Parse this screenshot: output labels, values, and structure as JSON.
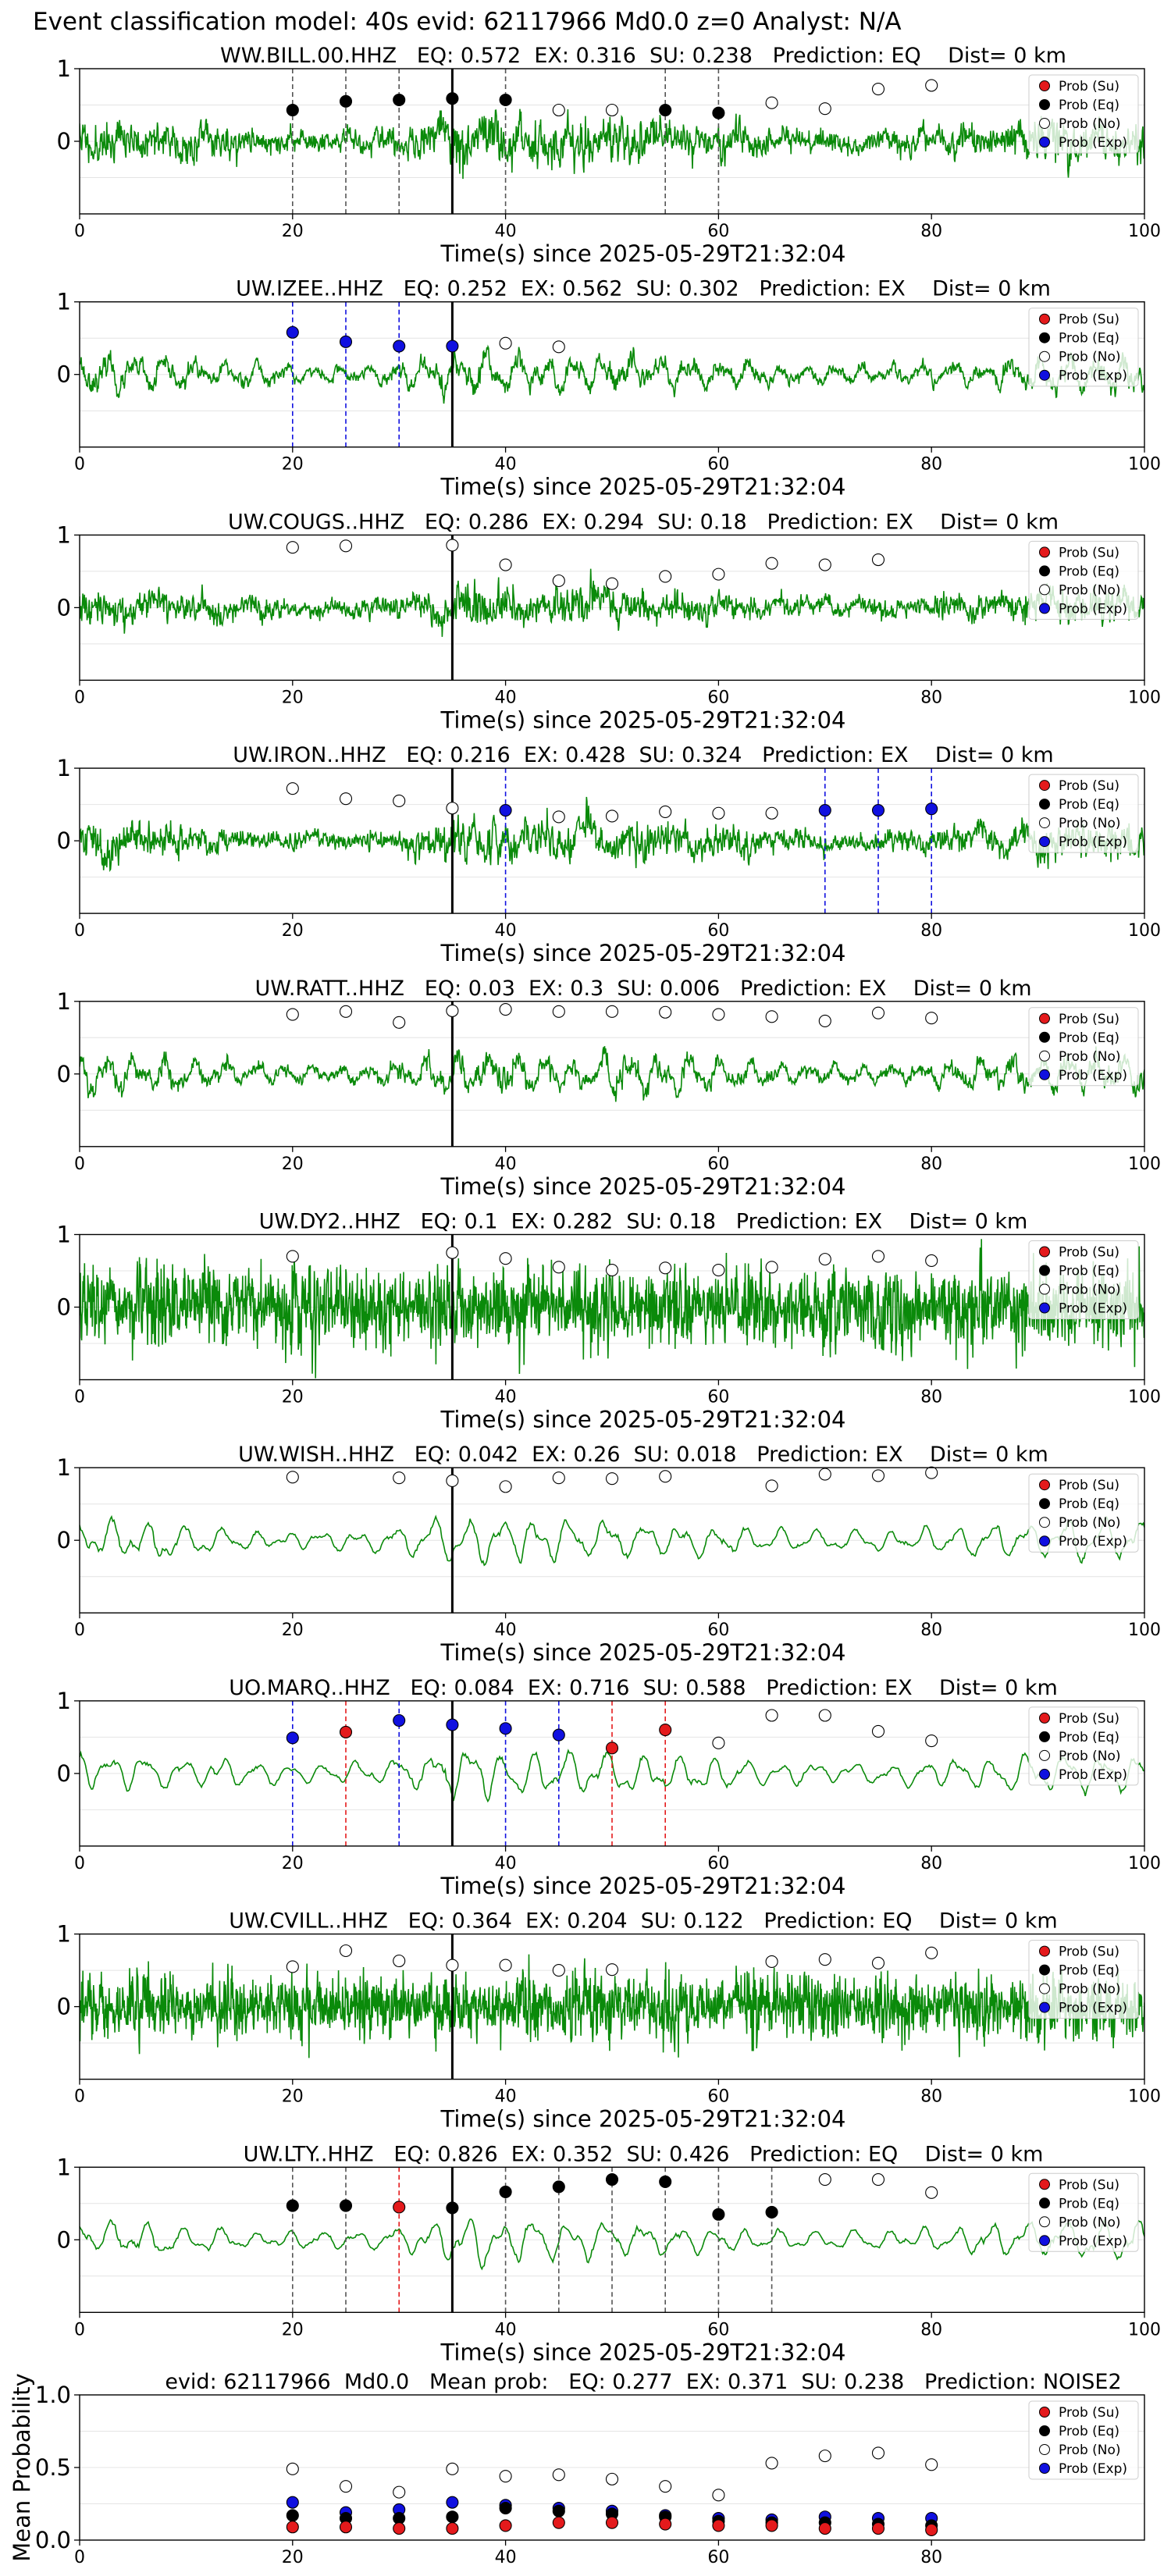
{
  "suptitle": "Event classification model: 40s evid: 62117966 Md0.0 z=0 Analyst: N/A",
  "legend_labels": [
    "Prob (Su)",
    "Prob (Eq)",
    "Prob (No)",
    "Prob (Exp)"
  ],
  "colors": {
    "su": "#e41a1c",
    "eq": "#000000",
    "no": "#ffffff",
    "exp": "#1010e0",
    "waveform": "#0a8a0a",
    "pick": "#000000"
  },
  "chart_data": [
    {
      "type": "scatter",
      "title": "WW.BILL.00.HHZ   EQ: 0.572  EX: 0.316  SU: 0.238   Prediction: EQ    Dist= 0 km",
      "xlabel": "Time(s) since 2025-05-29T21:32:04",
      "xlim": [
        0,
        100
      ],
      "ylim": [
        -1,
        1
      ],
      "xticks": [
        0,
        20,
        40,
        60,
        80,
        100
      ],
      "yticks": [
        0,
        1
      ],
      "pick_time": 35,
      "grid": true,
      "legend": "upper right",
      "waveform": {
        "style": "broadband",
        "amplitude": 0.5,
        "seed": 11
      },
      "series": [
        {
          "name": "Prob (No)",
          "x": [
            45,
            50,
            65,
            70,
            75,
            80
          ],
          "y": [
            0.43,
            0.43,
            0.53,
            0.45,
            0.72,
            0.77
          ]
        },
        {
          "name": "Prob (Eq)",
          "x": [
            20,
            25,
            30,
            35,
            40,
            55,
            60
          ],
          "y": [
            0.43,
            0.55,
            0.57,
            0.59,
            0.57,
            0.43,
            0.39
          ]
        }
      ],
      "markers": [
        {
          "x": 20,
          "class": "eq"
        },
        {
          "x": 25,
          "class": "eq"
        },
        {
          "x": 30,
          "class": "eq"
        },
        {
          "x": 40,
          "class": "eq"
        },
        {
          "x": 55,
          "class": "eq"
        },
        {
          "x": 60,
          "class": "eq"
        }
      ]
    },
    {
      "type": "scatter",
      "title": "UW.IZEE..HHZ   EQ: 0.252  EX: 0.562  SU: 0.302   Prediction: EX    Dist= 0 km",
      "xlabel": "Time(s) since 2025-05-29T21:32:04",
      "xlim": [
        0,
        100
      ],
      "ylim": [
        -1,
        1
      ],
      "xticks": [
        0,
        20,
        40,
        60,
        80,
        100
      ],
      "yticks": [
        0,
        1
      ],
      "pick_time": 35,
      "grid": true,
      "legend": "upper right",
      "waveform": {
        "style": "oscillating",
        "amplitude": 0.5,
        "seed": 23
      },
      "series": [
        {
          "name": "Prob (No)",
          "x": [
            40,
            45
          ],
          "y": [
            0.43,
            0.38
          ]
        },
        {
          "name": "Prob (Exp)",
          "x": [
            20,
            25,
            30,
            35
          ],
          "y": [
            0.58,
            0.45,
            0.39,
            0.39
          ]
        }
      ],
      "markers": [
        {
          "x": 20,
          "class": "exp"
        },
        {
          "x": 25,
          "class": "exp"
        },
        {
          "x": 30,
          "class": "exp"
        }
      ]
    },
    {
      "type": "scatter",
      "title": "UW.COUGS..HHZ   EQ: 0.286  EX: 0.294  SU: 0.18   Prediction: EX    Dist= 0 km",
      "xlabel": "Time(s) since 2025-05-29T21:32:04",
      "xlim": [
        0,
        100
      ],
      "ylim": [
        -1,
        1
      ],
      "xticks": [
        0,
        20,
        40,
        60,
        80,
        100
      ],
      "yticks": [
        0,
        1
      ],
      "pick_time": 35,
      "grid": true,
      "legend": "upper right",
      "waveform": {
        "style": "broadband",
        "amplitude": 0.4,
        "seed": 37
      },
      "series": [
        {
          "name": "Prob (No)",
          "x": [
            20,
            25,
            35,
            40,
            45,
            50,
            55,
            60,
            65,
            70,
            75
          ],
          "y": [
            0.83,
            0.85,
            0.86,
            0.59,
            0.37,
            0.33,
            0.43,
            0.46,
            0.61,
            0.59,
            0.66
          ]
        }
      ],
      "markers": []
    },
    {
      "type": "scatter",
      "title": "UW.IRON..HHZ   EQ: 0.216  EX: 0.428  SU: 0.324   Prediction: EX    Dist= 0 km",
      "xlabel": "Time(s) since 2025-05-29T21:32:04",
      "xlim": [
        0,
        100
      ],
      "ylim": [
        -1,
        1
      ],
      "xticks": [
        0,
        20,
        40,
        60,
        80,
        100
      ],
      "yticks": [
        0,
        1
      ],
      "pick_time": 35,
      "grid": true,
      "legend": "upper right",
      "waveform": {
        "style": "broadband",
        "amplitude": 0.42,
        "seed": 41
      },
      "series": [
        {
          "name": "Prob (No)",
          "x": [
            20,
            25,
            30,
            35,
            45,
            50,
            55,
            60,
            65
          ],
          "y": [
            0.72,
            0.58,
            0.55,
            0.45,
            0.33,
            0.34,
            0.4,
            0.38,
            0.38
          ]
        },
        {
          "name": "Prob (Exp)",
          "x": [
            40,
            70,
            75,
            80
          ],
          "y": [
            0.42,
            0.42,
            0.42,
            0.44
          ]
        }
      ],
      "markers": [
        {
          "x": 40,
          "class": "exp"
        },
        {
          "x": 70,
          "class": "exp"
        },
        {
          "x": 75,
          "class": "exp"
        },
        {
          "x": 80,
          "class": "exp"
        }
      ]
    },
    {
      "type": "scatter",
      "title": "UW.RATT..HHZ   EQ: 0.03  EX: 0.3  SU: 0.006   Prediction: EX    Dist= 0 km",
      "xlabel": "Time(s) since 2025-05-29T21:32:04",
      "xlim": [
        0,
        100
      ],
      "ylim": [
        -1,
        1
      ],
      "xticks": [
        0,
        20,
        40,
        60,
        80,
        100
      ],
      "yticks": [
        0,
        1
      ],
      "pick_time": 35,
      "grid": true,
      "legend": "upper right",
      "waveform": {
        "style": "oscillating",
        "amplitude": 0.55,
        "seed": 53
      },
      "series": [
        {
          "name": "Prob (No)",
          "x": [
            20,
            25,
            30,
            35,
            40,
            45,
            50,
            55,
            60,
            65,
            70,
            75,
            80
          ],
          "y": [
            0.82,
            0.86,
            0.71,
            0.87,
            0.89,
            0.86,
            0.86,
            0.85,
            0.82,
            0.79,
            0.73,
            0.84,
            0.77
          ]
        }
      ],
      "markers": []
    },
    {
      "type": "scatter",
      "title": "UW.DY2..HHZ   EQ: 0.1  EX: 0.282  SU: 0.18   Prediction: EX    Dist= 0 km",
      "xlabel": "Time(s) since 2025-05-29T21:32:04",
      "xlim": [
        0,
        100
      ],
      "ylim": [
        -1,
        1
      ],
      "xticks": [
        0,
        20,
        40,
        60,
        80,
        100
      ],
      "yticks": [
        0,
        1
      ],
      "pick_time": 35,
      "grid": true,
      "legend": "upper right",
      "waveform": {
        "style": "dense",
        "amplitude": 0.55,
        "seed": 67
      },
      "series": [
        {
          "name": "Prob (No)",
          "x": [
            20,
            35,
            40,
            45,
            50,
            55,
            60,
            65,
            70,
            75,
            80
          ],
          "y": [
            0.7,
            0.75,
            0.67,
            0.55,
            0.51,
            0.54,
            0.51,
            0.55,
            0.66,
            0.7,
            0.64
          ]
        }
      ],
      "markers": []
    },
    {
      "type": "scatter",
      "title": "UW.WISH..HHZ   EQ: 0.042  EX: 0.26  SU: 0.018   Prediction: EX    Dist= 0 km",
      "xlabel": "Time(s) since 2025-05-29T21:32:04",
      "xlim": [
        0,
        100
      ],
      "ylim": [
        -1,
        1
      ],
      "xticks": [
        0,
        20,
        40,
        60,
        80,
        100
      ],
      "yticks": [
        0,
        1
      ],
      "pick_time": 35,
      "grid": true,
      "legend": "upper right",
      "waveform": {
        "style": "smooth",
        "amplitude": 0.55,
        "seed": 79
      },
      "series": [
        {
          "name": "Prob (No)",
          "x": [
            20,
            30,
            35,
            40,
            45,
            50,
            55,
            65,
            70,
            75,
            80
          ],
          "y": [
            0.87,
            0.86,
            0.82,
            0.74,
            0.86,
            0.85,
            0.88,
            0.75,
            0.91,
            0.89,
            0.93
          ]
        }
      ],
      "markers": []
    },
    {
      "type": "scatter",
      "title": "UO.MARQ..HHZ   EQ: 0.084  EX: 0.716  SU: 0.588   Prediction: EX    Dist= 0 km",
      "xlabel": "Time(s) since 2025-05-29T21:32:04",
      "xlim": [
        0,
        100
      ],
      "ylim": [
        -1,
        1
      ],
      "xticks": [
        0,
        20,
        40,
        60,
        80,
        100
      ],
      "yticks": [
        0,
        1
      ],
      "pick_time": 35,
      "grid": true,
      "legend": "upper right",
      "waveform": {
        "style": "smooth",
        "amplitude": 0.55,
        "seed": 97
      },
      "series": [
        {
          "name": "Prob (Su)",
          "x": [
            25,
            50,
            55
          ],
          "y": [
            0.57,
            0.35,
            0.6
          ]
        },
        {
          "name": "Prob (No)",
          "x": [
            60,
            65,
            70,
            75,
            80
          ],
          "y": [
            0.42,
            0.8,
            0.8,
            0.58,
            0.45
          ]
        },
        {
          "name": "Prob (Exp)",
          "x": [
            20,
            30,
            35,
            40,
            45
          ],
          "y": [
            0.49,
            0.73,
            0.67,
            0.62,
            0.53
          ]
        }
      ],
      "markers": [
        {
          "x": 20,
          "class": "exp"
        },
        {
          "x": 25,
          "class": "su"
        },
        {
          "x": 30,
          "class": "exp"
        },
        {
          "x": 40,
          "class": "exp"
        },
        {
          "x": 45,
          "class": "exp"
        },
        {
          "x": 50,
          "class": "su"
        },
        {
          "x": 55,
          "class": "su"
        }
      ]
    },
    {
      "type": "scatter",
      "title": "UW.CVILL..HHZ   EQ: 0.364  EX: 0.204  SU: 0.122   Prediction: EQ    Dist= 0 km",
      "xlabel": "Time(s) since 2025-05-29T21:32:04",
      "xlim": [
        0,
        100
      ],
      "ylim": [
        -1,
        1
      ],
      "xticks": [
        0,
        20,
        40,
        60,
        80,
        100
      ],
      "yticks": [
        0,
        1
      ],
      "pick_time": 35,
      "grid": true,
      "legend": "upper right",
      "waveform": {
        "style": "dense",
        "amplitude": 0.45,
        "seed": 103
      },
      "series": [
        {
          "name": "Prob (No)",
          "x": [
            20,
            25,
            30,
            35,
            40,
            45,
            50,
            65,
            70,
            75,
            80
          ],
          "y": [
            0.55,
            0.77,
            0.63,
            0.57,
            0.57,
            0.5,
            0.51,
            0.62,
            0.65,
            0.6,
            0.74
          ]
        }
      ],
      "markers": []
    },
    {
      "type": "scatter",
      "title": "UW.LTY..HHZ   EQ: 0.826  EX: 0.352  SU: 0.426   Prediction: EQ    Dist= 0 km",
      "xlabel": "Time(s) since 2025-05-29T21:32:04",
      "xlim": [
        0,
        100
      ],
      "ylim": [
        -1,
        1
      ],
      "xticks": [
        0,
        20,
        40,
        60,
        80,
        100
      ],
      "yticks": [
        0,
        1
      ],
      "pick_time": 35,
      "grid": true,
      "legend": "upper right",
      "waveform": {
        "style": "smooth",
        "amplitude": 0.5,
        "seed": 113
      },
      "series": [
        {
          "name": "Prob (Su)",
          "x": [
            30
          ],
          "y": [
            0.45
          ]
        },
        {
          "name": "Prob (Eq)",
          "x": [
            20,
            25,
            35,
            40,
            45,
            50,
            55,
            60,
            65
          ],
          "y": [
            0.47,
            0.47,
            0.44,
            0.66,
            0.73,
            0.83,
            0.8,
            0.35,
            0.38
          ]
        },
        {
          "name": "Prob (No)",
          "x": [
            70,
            75,
            80
          ],
          "y": [
            0.83,
            0.83,
            0.65
          ]
        }
      ],
      "markers": [
        {
          "x": 20,
          "class": "eq"
        },
        {
          "x": 25,
          "class": "eq"
        },
        {
          "x": 30,
          "class": "su"
        },
        {
          "x": 40,
          "class": "eq"
        },
        {
          "x": 45,
          "class": "eq"
        },
        {
          "x": 50,
          "class": "eq"
        },
        {
          "x": 55,
          "class": "eq"
        },
        {
          "x": 60,
          "class": "eq"
        },
        {
          "x": 65,
          "class": "eq"
        }
      ]
    },
    {
      "type": "scatter",
      "title": "evid: 62117966  Md0.0   Mean prob:   EQ: 0.277  EX: 0.371  SU: 0.238   Prediction: NOISE2",
      "xlabel": "",
      "ylabel": "Mean Probability",
      "xlim": [
        0,
        100
      ],
      "ylim": [
        0,
        1
      ],
      "xticks": [
        0,
        20,
        40,
        60,
        80
      ],
      "yticks": [
        0.0,
        0.5,
        1.0
      ],
      "grid": true,
      "legend": "upper right",
      "series": [
        {
          "name": "Prob (No)",
          "x": [
            20,
            25,
            30,
            35,
            40,
            45,
            50,
            55,
            60,
            65,
            70,
            75,
            80
          ],
          "y": [
            0.49,
            0.37,
            0.33,
            0.49,
            0.44,
            0.45,
            0.42,
            0.37,
            0.31,
            0.53,
            0.58,
            0.6,
            0.52
          ]
        },
        {
          "name": "Prob (Exp)",
          "x": [
            20,
            25,
            30,
            35,
            40,
            45,
            50,
            55,
            60,
            65,
            70,
            75,
            80
          ],
          "y": [
            0.26,
            0.19,
            0.21,
            0.26,
            0.24,
            0.22,
            0.2,
            0.17,
            0.15,
            0.14,
            0.16,
            0.15,
            0.15
          ]
        },
        {
          "name": "Prob (Eq)",
          "x": [
            20,
            25,
            30,
            35,
            40,
            45,
            50,
            55,
            60,
            65,
            70,
            75,
            80
          ],
          "y": [
            0.17,
            0.15,
            0.15,
            0.16,
            0.22,
            0.2,
            0.18,
            0.16,
            0.13,
            0.12,
            0.12,
            0.11,
            0.1
          ]
        },
        {
          "name": "Prob (Su)",
          "x": [
            20,
            25,
            30,
            35,
            40,
            45,
            50,
            55,
            60,
            65,
            70,
            75,
            80
          ],
          "y": [
            0.09,
            0.09,
            0.08,
            0.08,
            0.1,
            0.12,
            0.12,
            0.11,
            0.1,
            0.1,
            0.08,
            0.08,
            0.07
          ]
        }
      ]
    }
  ]
}
